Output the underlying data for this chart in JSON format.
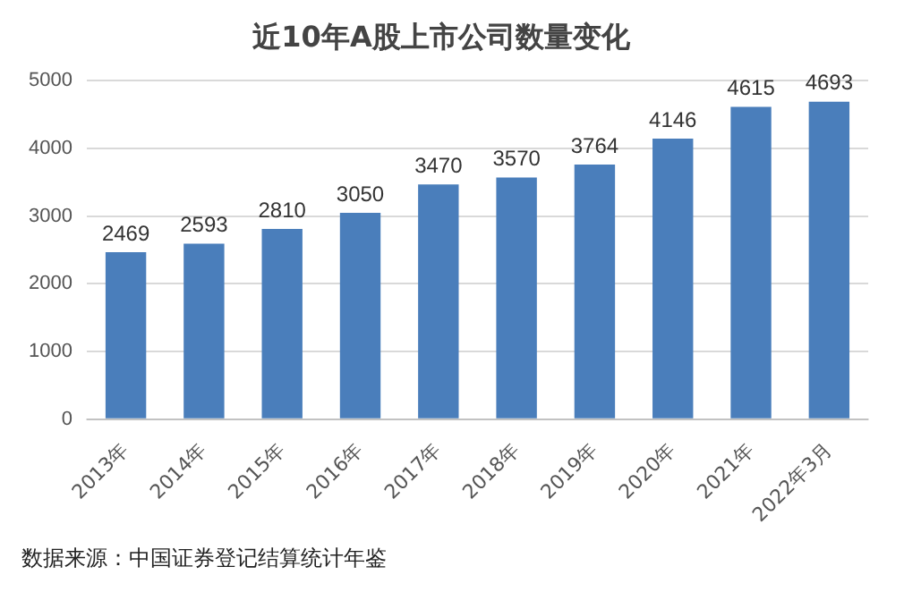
{
  "chart_data": {
    "type": "bar",
    "title": "近10年A股上市公司数量变化",
    "categories": [
      "2013年",
      "2014年",
      "2015年",
      "2016年",
      "2017年",
      "2018年",
      "2019年",
      "2020年",
      "2021年",
      "2022年3月"
    ],
    "values": [
      2469,
      2593,
      2810,
      3050,
      3470,
      3570,
      3764,
      4146,
      4615,
      4693
    ],
    "color": "#4a7ebb",
    "ylim": [
      0,
      5000
    ],
    "yticks": [
      0,
      1000,
      2000,
      3000,
      4000,
      5000
    ],
    "grid": "y",
    "data_labels": true,
    "annotations": [
      "数据来源：中国证券登记结算统计年鉴"
    ]
  }
}
